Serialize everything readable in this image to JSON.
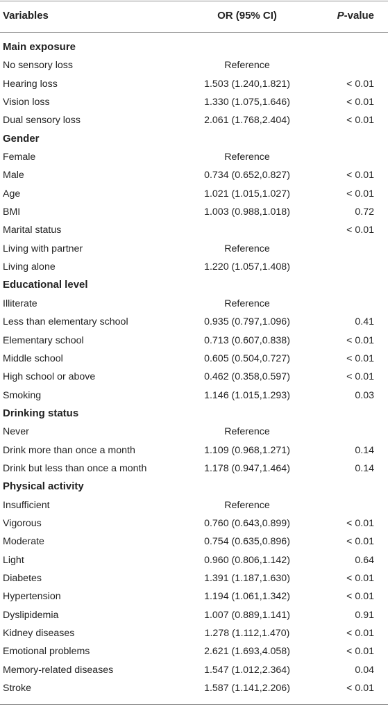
{
  "header": {
    "variables": "Variables",
    "or": "OR (95% CI)",
    "p_italic": "P",
    "p_rest": "-value"
  },
  "rows": [
    {
      "label": "Main exposure",
      "or": "",
      "p": "",
      "section": true
    },
    {
      "label": "No sensory loss",
      "or": "Reference",
      "p": ""
    },
    {
      "label": "Hearing loss",
      "or": "1.503 (1.240,1.821)",
      "p": "< 0.01"
    },
    {
      "label": "Vision loss",
      "or": "1.330 (1.075,1.646)",
      "p": "< 0.01"
    },
    {
      "label": "Dual sensory loss",
      "or": "2.061 (1.768,2.404)",
      "p": "< 0.01"
    },
    {
      "label": "Gender",
      "or": "",
      "p": "",
      "section": true
    },
    {
      "label": "Female",
      "or": "Reference",
      "p": ""
    },
    {
      "label": "Male",
      "or": "0.734 (0.652,0.827)",
      "p": "< 0.01"
    },
    {
      "label": "Age",
      "or": "1.021 (1.015,1.027)",
      "p": "< 0.01"
    },
    {
      "label": "BMI",
      "or": "1.003 (0.988,1.018)",
      "p": "0.72"
    },
    {
      "label": "Marital status",
      "or": "",
      "p": "< 0.01"
    },
    {
      "label": "Living with partner",
      "or": "Reference",
      "p": ""
    },
    {
      "label": "Living alone",
      "or": "1.220 (1.057,1.408)",
      "p": ""
    },
    {
      "label": "Educational level",
      "or": "",
      "p": "",
      "section": true
    },
    {
      "label": "Illiterate",
      "or": "Reference",
      "p": ""
    },
    {
      "label": "Less than elementary school",
      "or": "0.935 (0.797,1.096)",
      "p": "0.41"
    },
    {
      "label": "Elementary school",
      "or": "0.713 (0.607,0.838)",
      "p": "< 0.01"
    },
    {
      "label": "Middle school",
      "or": "0.605 (0.504,0.727)",
      "p": "< 0.01"
    },
    {
      "label": "High school or above",
      "or": "0.462 (0.358,0.597)",
      "p": "< 0.01"
    },
    {
      "label": "Smoking",
      "or": "1.146 (1.015,1.293)",
      "p": "0.03"
    },
    {
      "label": "Drinking status",
      "or": "",
      "p": "",
      "section": true
    },
    {
      "label": "Never",
      "or": "Reference",
      "p": ""
    },
    {
      "label": "Drink more than once a month",
      "or": "1.109 (0.968,1.271)",
      "p": "0.14"
    },
    {
      "label": "Drink but less than once a month",
      "or": "1.178 (0.947,1.464)",
      "p": "0.14"
    },
    {
      "label": "Physical activity",
      "or": "",
      "p": "",
      "section": true
    },
    {
      "label": "Insufficient",
      "or": "Reference",
      "p": ""
    },
    {
      "label": "Vigorous",
      "or": "0.760 (0.643,0.899)",
      "p": "< 0.01"
    },
    {
      "label": "Moderate",
      "or": "0.754 (0.635,0.896)",
      "p": "< 0.01"
    },
    {
      "label": "Light",
      "or": "0.960 (0.806,1.142)",
      "p": "0.64"
    },
    {
      "label": "Diabetes",
      "or": "1.391 (1.187,1.630)",
      "p": "< 0.01"
    },
    {
      "label": "Hypertension",
      "or": "1.194 (1.061,1.342)",
      "p": "< 0.01"
    },
    {
      "label": "Dyslipidemia",
      "or": "1.007 (0.889,1.141)",
      "p": "0.91"
    },
    {
      "label": "Kidney diseases",
      "or": "1.278 (1.112,1.470)",
      "p": "< 0.01"
    },
    {
      "label": "Emotional problems",
      "or": "2.621 (1.693,4.058)",
      "p": "< 0.01"
    },
    {
      "label": "Memory-related diseases",
      "or": "1.547 (1.012,2.364)",
      "p": "0.04"
    },
    {
      "label": "Stroke",
      "or": "1.587 (1.141,2.206)",
      "p": "< 0.01"
    }
  ]
}
